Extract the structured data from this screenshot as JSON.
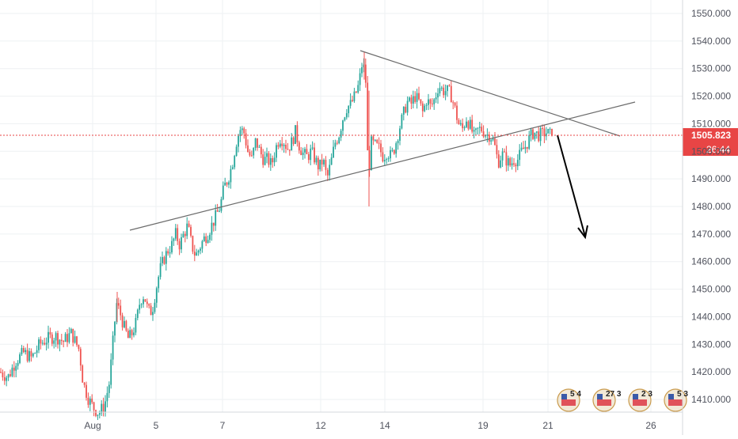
{
  "chart_data": {
    "type": "candlestick",
    "ylim": [
      1405,
      1555
    ],
    "y_ticks": [
      1410,
      1420,
      1430,
      1440,
      1450,
      1460,
      1470,
      1480,
      1490,
      1500,
      1510,
      1520,
      1530,
      1540,
      1550
    ],
    "y_tick_labels": [
      "1410.000",
      "1420.000",
      "1430.000",
      "1440.000",
      "1450.000",
      "1460.000",
      "1470.000",
      "1480.000",
      "1490.000",
      "1500.000",
      "1510.000",
      "1520.000",
      "1530.000",
      "1540.000",
      "1550.000"
    ],
    "x_ticks": [
      "Aug",
      "5",
      "7",
      "12",
      "14",
      "19",
      "21",
      "26"
    ],
    "current_price": 1505.823,
    "current_price_label": "1505.823",
    "countdown_label": "26:44",
    "up_color": "#26a69a",
    "down_color": "#ef5350",
    "trendlines": [
      {
        "name": "rising-support",
        "from": [
          0.0,
          1472.0
        ],
        "to": [
          1.0,
          1518.0
        ]
      },
      {
        "name": "falling-resistance",
        "from": [
          0.0,
          1537.0
        ],
        "to": [
          1.0,
          1506.0
        ]
      }
    ],
    "projection_arrow": {
      "from_price": 1506.0,
      "to_price": 1468.0
    },
    "events": [
      {
        "label": "5 4"
      },
      {
        "label": "27 3"
      },
      {
        "label": "2 3"
      },
      {
        "label": "5 3"
      }
    ],
    "path_points": [
      [
        0,
        1420
      ],
      [
        10,
        1418
      ],
      [
        20,
        1424
      ],
      [
        30,
        1427
      ],
      [
        40,
        1425
      ],
      [
        50,
        1430
      ],
      [
        60,
        1432
      ],
      [
        70,
        1433
      ],
      [
        80,
        1431
      ],
      [
        90,
        1434
      ],
      [
        100,
        1428
      ],
      [
        105,
        1416
      ],
      [
        112,
        1410
      ],
      [
        118,
        1407
      ],
      [
        125,
        1405
      ],
      [
        132,
        1408
      ],
      [
        138,
        1416
      ],
      [
        143,
        1432
      ],
      [
        147,
        1445
      ],
      [
        152,
        1441
      ],
      [
        157,
        1436
      ],
      [
        162,
        1432
      ],
      [
        167,
        1434
      ],
      [
        172,
        1438
      ],
      [
        177,
        1446
      ],
      [
        182,
        1448
      ],
      [
        187,
        1442
      ],
      [
        192,
        1442
      ],
      [
        197,
        1450
      ],
      [
        202,
        1457
      ],
      [
        207,
        1461
      ],
      [
        212,
        1464
      ],
      [
        217,
        1466
      ],
      [
        222,
        1470
      ],
      [
        227,
        1466
      ],
      [
        232,
        1470
      ],
      [
        237,
        1473
      ],
      [
        242,
        1466
      ],
      [
        247,
        1462
      ],
      [
        252,
        1465
      ],
      [
        257,
        1468
      ],
      [
        262,
        1470
      ],
      [
        267,
        1473
      ],
      [
        272,
        1476
      ],
      [
        278,
        1480
      ],
      [
        283,
        1487
      ],
      [
        288,
        1490
      ],
      [
        293,
        1495
      ],
      [
        298,
        1503
      ],
      [
        303,
        1508
      ],
      [
        308,
        1507
      ],
      [
        313,
        1500
      ],
      [
        318,
        1497
      ],
      [
        323,
        1504
      ],
      [
        328,
        1500
      ],
      [
        333,
        1497
      ],
      [
        338,
        1497
      ],
      [
        343,
        1495
      ],
      [
        348,
        1501
      ],
      [
        353,
        1505
      ],
      [
        358,
        1504
      ],
      [
        363,
        1501
      ],
      [
        368,
        1503
      ],
      [
        373,
        1507
      ],
      [
        378,
        1502
      ],
      [
        383,
        1499
      ],
      [
        388,
        1498
      ],
      [
        393,
        1500
      ],
      [
        398,
        1497
      ],
      [
        403,
        1494
      ],
      [
        408,
        1497
      ],
      [
        413,
        1490
      ],
      [
        418,
        1496
      ],
      [
        423,
        1503
      ],
      [
        428,
        1506
      ],
      [
        433,
        1512
      ],
      [
        438,
        1516
      ],
      [
        443,
        1517
      ],
      [
        448,
        1520
      ],
      [
        453,
        1524
      ],
      [
        458,
        1533
      ],
      [
        462,
        1525
      ],
      [
        465,
        1490
      ],
      [
        469,
        1503
      ],
      [
        474,
        1502
      ],
      [
        479,
        1501
      ],
      [
        484,
        1498
      ],
      [
        489,
        1500
      ],
      [
        494,
        1498
      ],
      [
        499,
        1502
      ],
      [
        504,
        1508
      ],
      [
        509,
        1513
      ],
      [
        514,
        1518
      ],
      [
        519,
        1517
      ],
      [
        524,
        1520
      ],
      [
        529,
        1518
      ],
      [
        534,
        1514
      ],
      [
        539,
        1519
      ],
      [
        544,
        1516
      ],
      [
        549,
        1519
      ],
      [
        554,
        1524
      ],
      [
        559,
        1522
      ],
      [
        564,
        1522
      ],
      [
        569,
        1521
      ],
      [
        574,
        1516
      ],
      [
        579,
        1510
      ],
      [
        584,
        1508
      ],
      [
        589,
        1512
      ],
      [
        594,
        1509
      ],
      [
        599,
        1505
      ],
      [
        604,
        1508
      ],
      [
        609,
        1508
      ],
      [
        614,
        1506
      ],
      [
        619,
        1506
      ],
      [
        624,
        1503
      ],
      [
        629,
        1496
      ],
      [
        634,
        1499
      ],
      [
        639,
        1497
      ],
      [
        644,
        1495
      ],
      [
        649,
        1497
      ],
      [
        654,
        1497
      ],
      [
        659,
        1500
      ],
      [
        664,
        1502
      ],
      [
        669,
        1505
      ],
      [
        674,
        1507
      ],
      [
        679,
        1506
      ],
      [
        684,
        1506
      ],
      [
        689,
        1507
      ],
      [
        694,
        1506
      ],
      [
        697,
        1505.8
      ]
    ]
  }
}
